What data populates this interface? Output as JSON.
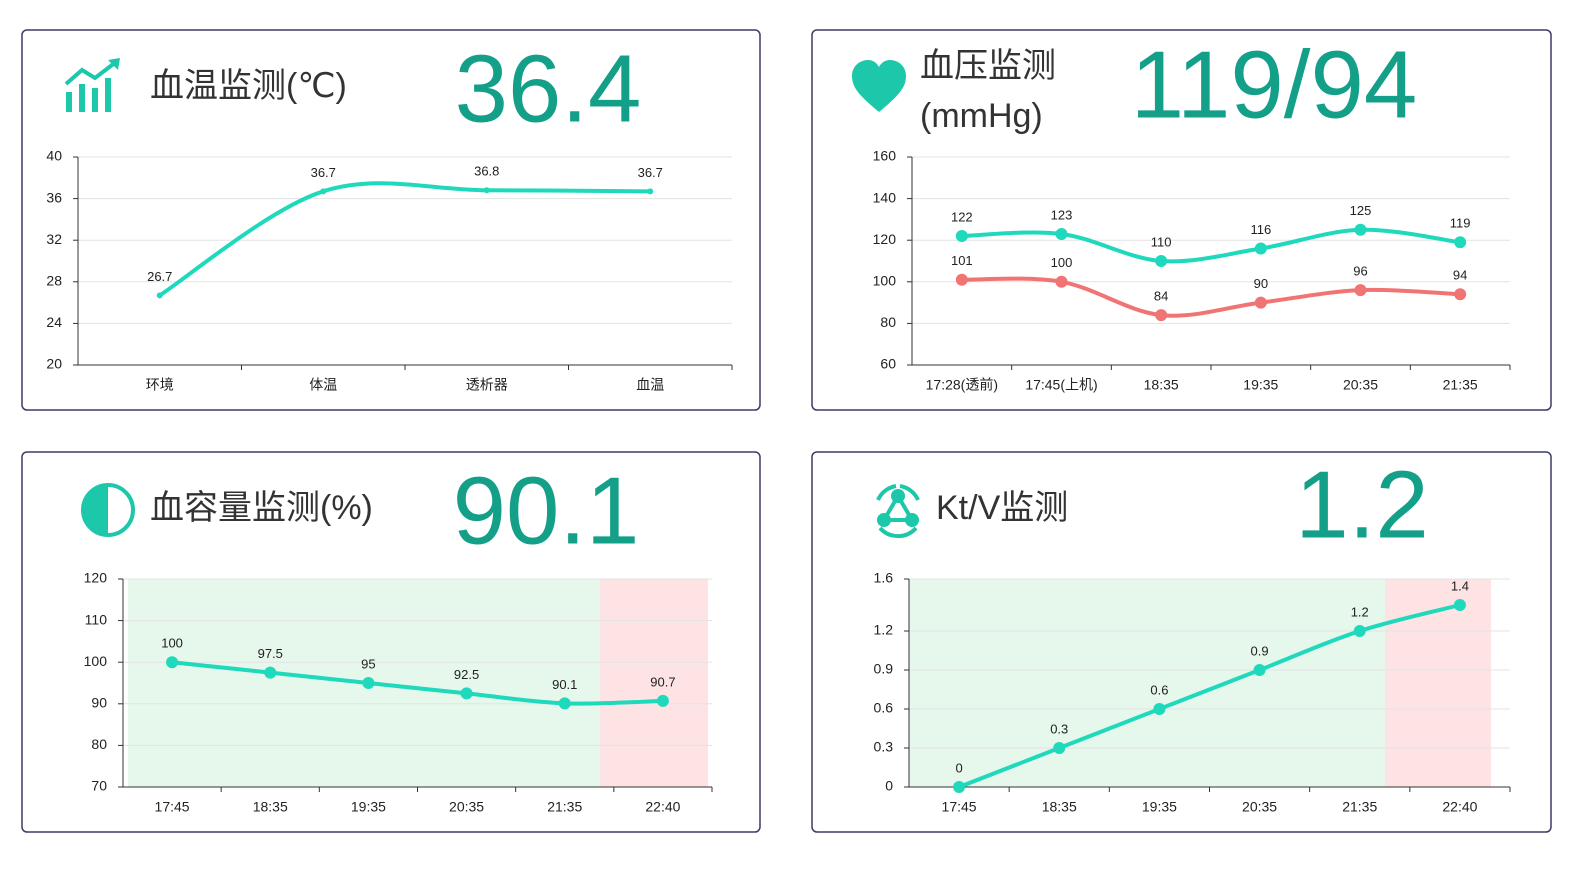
{
  "chart_data": [
    {
      "type": "line",
      "title": "血温监测(℃)",
      "reading": 36.4,
      "categories": [
        "环境",
        "体温",
        "透析器",
        "血温"
      ],
      "series": [
        {
          "color": "#1ed9bb",
          "values": [
            26.7,
            36.7,
            36.8,
            36.7
          ]
        }
      ],
      "ylim": [
        20,
        40
      ],
      "yticks": [
        20,
        24,
        28,
        32,
        36,
        40
      ],
      "grid": true
    },
    {
      "type": "line",
      "title": "血压监测",
      "subtitle": "(mmHg)",
      "reading": "119/94",
      "categories": [
        "17:28(透前)",
        "17:45(上机)",
        "18:35",
        "19:35",
        "20:35",
        "21:35"
      ],
      "series": [
        {
          "color": "#1ed9bb",
          "values": [
            122,
            123,
            110,
            116,
            125,
            119
          ]
        },
        {
          "color": "#f07474",
          "values": [
            101,
            100,
            84,
            90,
            96,
            94
          ]
        }
      ],
      "ylim": [
        60,
        160
      ],
      "yticks": [
        60,
        80,
        100,
        120,
        140,
        160
      ],
      "grid": true
    },
    {
      "type": "line",
      "title": "血容量监测(%)",
      "reading": 90.1,
      "categories": [
        "17:45",
        "18:35",
        "19:35",
        "20:35",
        "21:35",
        "22:40"
      ],
      "series": [
        {
          "color": "#1ed9bb",
          "values": [
            100,
            97.5,
            95,
            92.5,
            90.1,
            90.7
          ]
        }
      ],
      "ylim": [
        70,
        120
      ],
      "yticks": [
        70,
        80,
        90,
        100,
        110,
        120
      ],
      "grid": true
    },
    {
      "type": "line",
      "title": "Kt/V监测",
      "reading": 1.2,
      "categories": [
        "17:45",
        "18:35",
        "19:35",
        "20:35",
        "21:35",
        "22:40"
      ],
      "series": [
        {
          "color": "#1ed9bb",
          "values": [
            0,
            0.3,
            0.6,
            0.9,
            1.2,
            1.4
          ]
        }
      ],
      "ylim": [
        0,
        1.6
      ],
      "yticks": [
        0,
        0.3,
        0.6,
        0.9,
        1.2,
        1.6
      ],
      "grid": true
    }
  ]
}
